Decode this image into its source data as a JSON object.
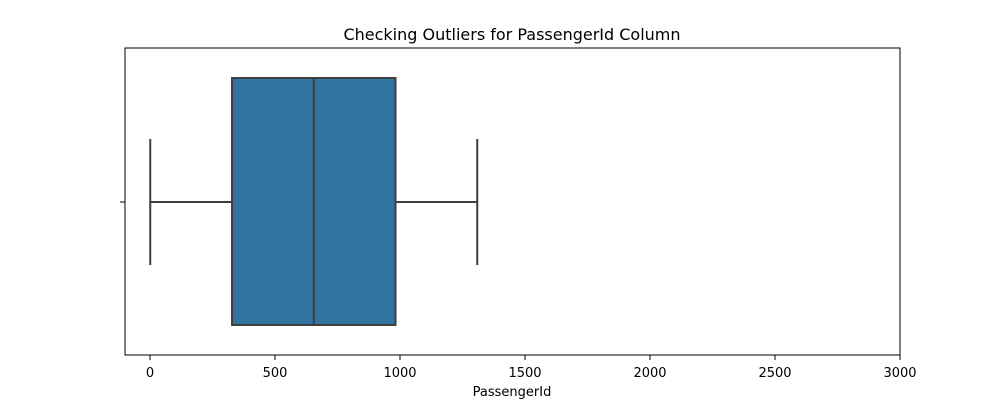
{
  "chart_data": {
    "type": "box",
    "title": "Checking Outliers for PassengerId Column",
    "xlabel": "PassengerId",
    "ylabel": "",
    "xlim": [
      -100,
      3000
    ],
    "xticks": [
      0,
      500,
      1000,
      1500,
      2000,
      2500,
      3000
    ],
    "grid": false,
    "box": {
      "whisker_low": 1,
      "q1": 328,
      "median": 655,
      "q3": 982,
      "whisker_high": 1309
    },
    "colors": {
      "box_fill": "#3274a1",
      "line": "#3f3f3f",
      "axis": "#000000"
    }
  }
}
